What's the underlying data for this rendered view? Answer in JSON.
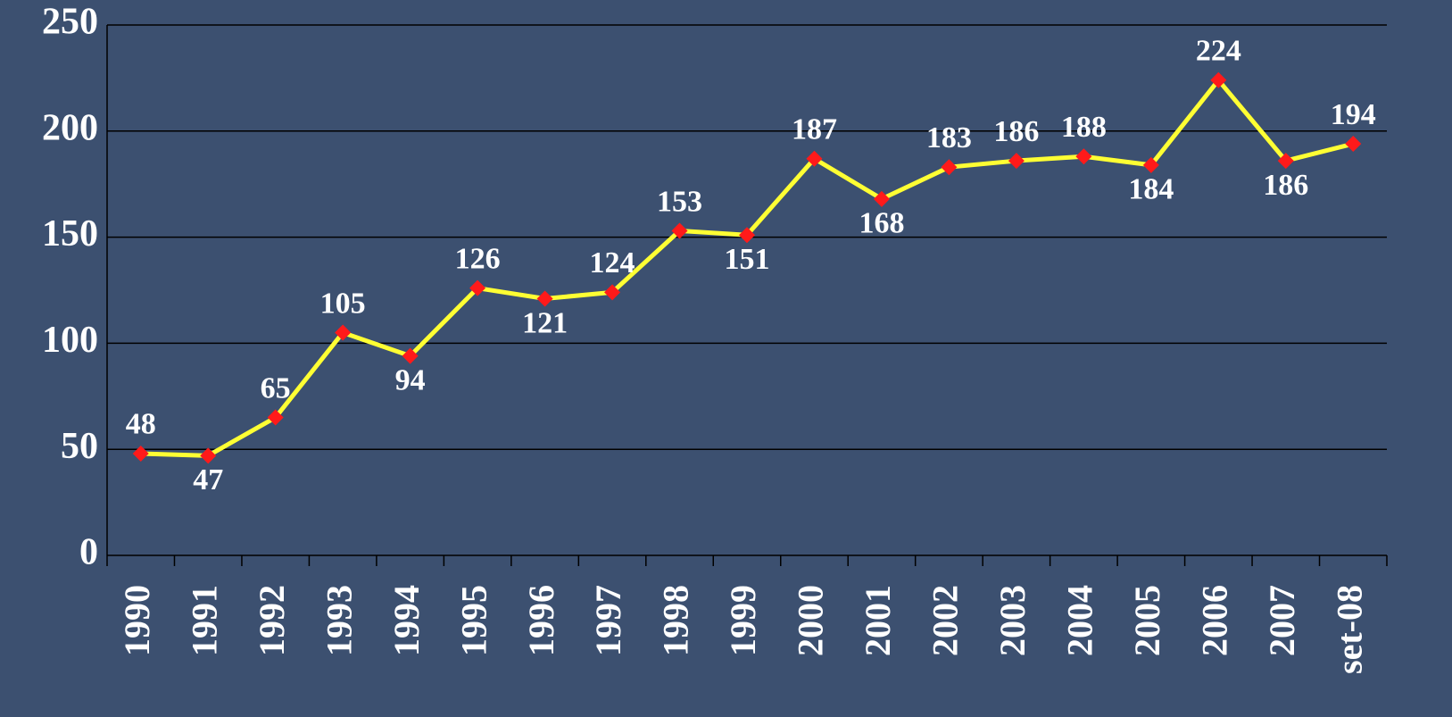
{
  "chart_data": {
    "type": "line",
    "categories": [
      "1990",
      "1991",
      "1992",
      "1993",
      "1994",
      "1995",
      "1996",
      "1997",
      "1998",
      "1999",
      "2000",
      "2001",
      "2002",
      "2003",
      "2004",
      "2005",
      "2006",
      "2007",
      "set-08"
    ],
    "values": [
      48,
      47,
      65,
      105,
      94,
      126,
      121,
      124,
      153,
      151,
      187,
      168,
      183,
      186,
      188,
      184,
      224,
      186,
      194
    ],
    "color": "#ffff33",
    "marker_color": "#ff1a1a",
    "ylim": [
      0,
      250
    ],
    "yticks": [
      0,
      50,
      100,
      150,
      200,
      250
    ],
    "grid": true
  }
}
